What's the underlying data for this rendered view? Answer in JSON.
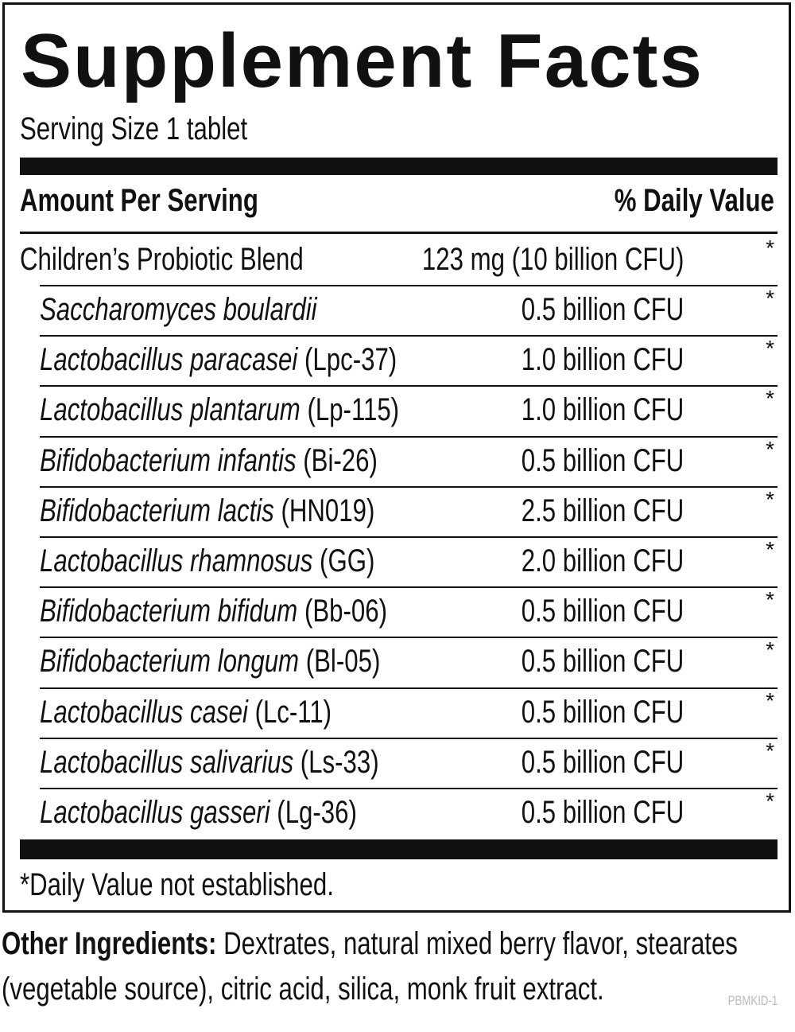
{
  "label": {
    "title": "Supplement Facts",
    "serving_size": "Serving Size 1 tablet",
    "header": {
      "left": "Amount Per Serving",
      "right": "% Daily Value"
    },
    "blend": {
      "name": "Children’s Probiotic Blend",
      "amount": "123 mg (10 billion CFU)",
      "dv": "*"
    },
    "rows": [
      {
        "name": "Saccharomyces boulardii",
        "amount": "0.5 billion CFU",
        "dv": "*"
      },
      {
        "name": "Lactobacillus paracasei",
        "strain": "(Lpc-37)",
        "amount": "1.0 billion CFU",
        "dv": "*"
      },
      {
        "name": "Lactobacillus plantarum",
        "strain": "(Lp-115)",
        "amount": "1.0 billion CFU",
        "dv": "*"
      },
      {
        "name": "Bifidobacterium infantis",
        "strain": "(Bi-26)",
        "amount": "0.5 billion CFU",
        "dv": "*"
      },
      {
        "name": "Bifidobacterium lactis",
        "strain": "(HN019)",
        "amount": "2.5 billion CFU",
        "dv": "*"
      },
      {
        "name": "Lactobacillus rhamnosus",
        "strain": "(GG)",
        "amount": "2.0 billion CFU",
        "dv": "*"
      },
      {
        "name": "Bifidobacterium bifidum",
        "strain": "(Bb-06)",
        "amount": "0.5 billion CFU",
        "dv": "*"
      },
      {
        "name": "Bifidobacterium longum",
        "strain": "(Bl-05)",
        "amount": "0.5 billion CFU",
        "dv": "*"
      },
      {
        "name": "Lactobacillus casei",
        "strain": "(Lc-11)",
        "amount": "0.5 billion CFU",
        "dv": "*"
      },
      {
        "name": "Lactobacillus salivarius",
        "strain": "(Ls-33)",
        "amount": "0.5 billion CFU",
        "dv": "*"
      },
      {
        "name": "Lactobacillus gasseri",
        "strain": "(Lg-36)",
        "amount": "0.5 billion CFU",
        "dv": "*"
      }
    ],
    "footnote": "*Daily Value not established."
  },
  "other_ingredients": {
    "label": "Other Ingredients:",
    "text": "Dextrates, natural mixed berry flavor, stearates (vegetable source), citric acid, silica, monk fruit extract."
  },
  "code": "PBMKID-1"
}
